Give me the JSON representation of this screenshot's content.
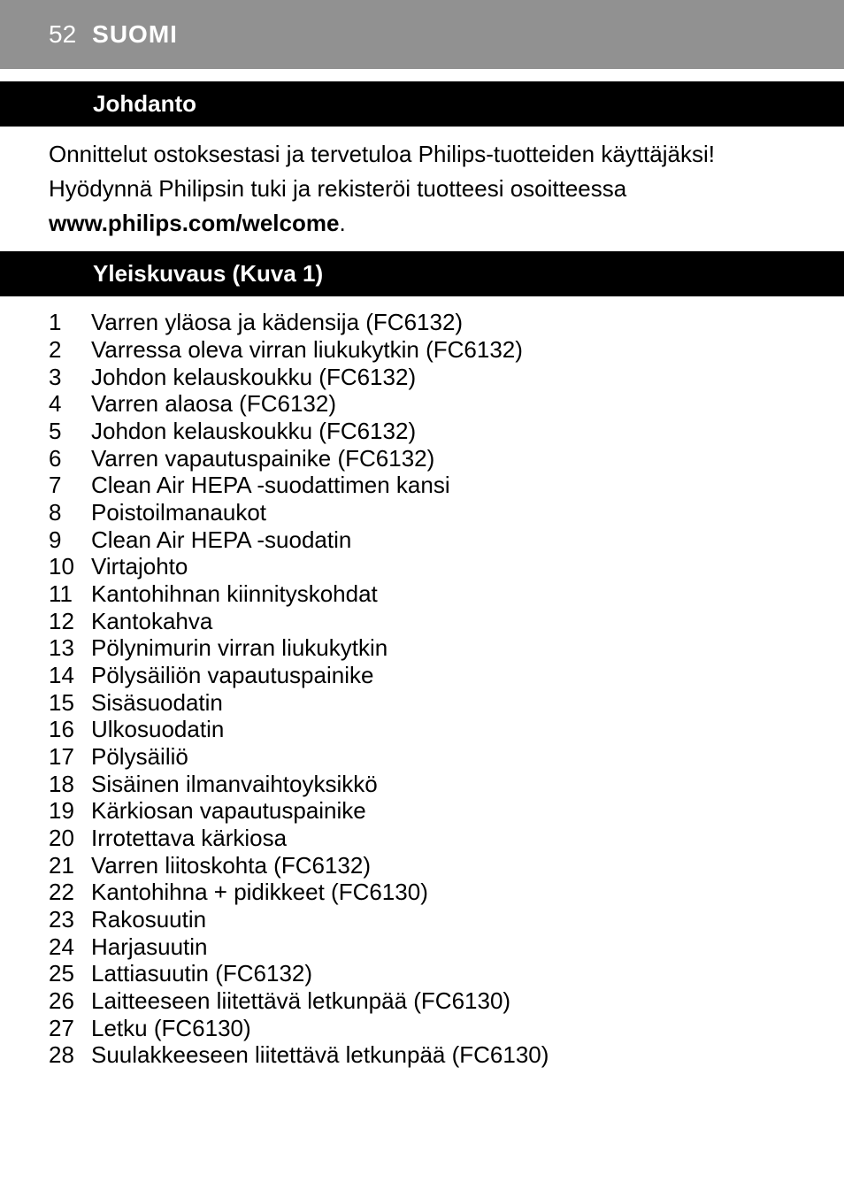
{
  "header": {
    "page_number": "52",
    "title": "SUOMI",
    "bg_color": "#919191",
    "text_color": "#ffffff"
  },
  "sections": {
    "intro": {
      "heading": "Johdanto",
      "line1": "Onnittelut ostoksestasi ja tervetuloa Philips-tuotteiden käyttäjäksi!",
      "line2": "Hyödynnä Philipsin tuki ja rekisteröi tuotteesi osoitteessa",
      "line3_bold": "www.philips.com/welcome",
      "line3_suffix": "."
    },
    "overview": {
      "heading": "Yleiskuvaus (Kuva 1)",
      "items": [
        {
          "n": "1",
          "t": "Varren yläosa ja kädensija (FC6132)"
        },
        {
          "n": "2",
          "t": "Varressa oleva virran liukukytkin (FC6132)"
        },
        {
          "n": "3",
          "t": "Johdon kelauskoukku (FC6132)"
        },
        {
          "n": "4",
          "t": "Varren alaosa (FC6132)"
        },
        {
          "n": "5",
          "t": "Johdon kelauskoukku (FC6132)"
        },
        {
          "n": "6",
          "t": "Varren vapautuspainike (FC6132)"
        },
        {
          "n": "7",
          "t": "Clean Air HEPA -suodattimen kansi"
        },
        {
          "n": "8",
          "t": "Poistoilmanaukot"
        },
        {
          "n": "9",
          "t": "Clean Air HEPA -suodatin"
        },
        {
          "n": "10",
          "t": "Virtajohto"
        },
        {
          "n": "11",
          "t": "Kantohihnan kiinnityskohdat"
        },
        {
          "n": "12",
          "t": "Kantokahva"
        },
        {
          "n": "13",
          "t": "Pölynimurin virran liukukytkin"
        },
        {
          "n": "14",
          "t": "Pölysäiliön vapautuspainike"
        },
        {
          "n": "15",
          "t": "Sisäsuodatin"
        },
        {
          "n": "16",
          "t": "Ulkosuodatin"
        },
        {
          "n": "17",
          "t": "Pölysäiliö"
        },
        {
          "n": "18",
          "t": "Sisäinen ilmanvaihtoyksikkö"
        },
        {
          "n": "19",
          "t": "Kärkiosan vapautuspainike"
        },
        {
          "n": "20",
          "t": "Irrotettava kärkiosa"
        },
        {
          "n": "21",
          "t": "Varren liitoskohta (FC6132)"
        },
        {
          "n": "22",
          "t": "Kantohihna + pidikkeet (FC6130)"
        },
        {
          "n": "23",
          "t": "Rakosuutin"
        },
        {
          "n": "24",
          "t": "Harjasuutin"
        },
        {
          "n": "25",
          "t": "Lattiasuutin (FC6132)"
        },
        {
          "n": "26",
          "t": "Laitteeseen liitettävä letkunpää (FC6130)"
        },
        {
          "n": "27",
          "t": "Letku (FC6130)"
        },
        {
          "n": "28",
          "t": "Suulakkeeseen liitettävä letkunpää (FC6130)"
        }
      ]
    }
  },
  "styling": {
    "section_bar_bg": "#000000",
    "section_bar_text": "#ffffff",
    "body_text_color": "#000000",
    "body_font_size": 26
  }
}
